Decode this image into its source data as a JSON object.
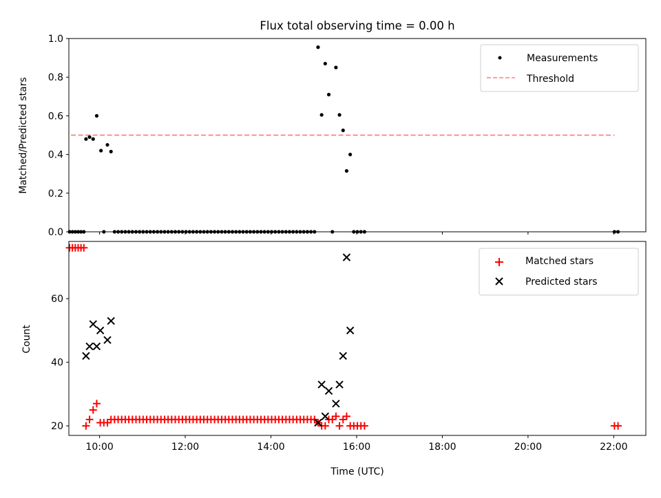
{
  "chart_data": [
    {
      "type": "scatter",
      "title": "Flux total observing time = 0.00 h",
      "xlabel": "",
      "ylabel": "Matched/Predicted stars",
      "xlim": [
        "09:17",
        "22:45"
      ],
      "ylim": [
        0,
        1.0
      ],
      "yticks": [
        "0.0",
        "0.2",
        "0.4",
        "0.6",
        "0.8",
        "1.0"
      ],
      "legend_position": "top-right",
      "series": [
        {
          "name": "Measurements",
          "color": "#000000",
          "marker": "dot",
          "points": [
            [
              "09:18",
              0
            ],
            [
              "09:22",
              0
            ],
            [
              "09:26",
              0
            ],
            [
              "09:30",
              0
            ],
            [
              "09:34",
              0
            ],
            [
              "09:38",
              0
            ],
            [
              "09:41",
              0.48
            ],
            [
              "09:46",
              0.49
            ],
            [
              "09:51",
              0.48
            ],
            [
              "09:56",
              0.6
            ],
            [
              "10:02",
              0.42
            ],
            [
              "10:06",
              0
            ],
            [
              "10:11",
              0.45
            ],
            [
              "10:16",
              0.415
            ],
            [
              "10:21",
              0
            ],
            [
              "10:26",
              0
            ],
            [
              "10:31",
              0
            ],
            [
              "10:36",
              0
            ],
            [
              "10:41",
              0
            ],
            [
              "10:46",
              0
            ],
            [
              "10:51",
              0
            ],
            [
              "10:56",
              0
            ],
            [
              "11:01",
              0
            ],
            [
              "11:06",
              0
            ],
            [
              "11:11",
              0
            ],
            [
              "11:16",
              0
            ],
            [
              "11:21",
              0
            ],
            [
              "11:26",
              0
            ],
            [
              "11:31",
              0
            ],
            [
              "11:36",
              0
            ],
            [
              "11:41",
              0
            ],
            [
              "11:46",
              0
            ],
            [
              "11:51",
              0
            ],
            [
              "11:56",
              0
            ],
            [
              "12:01",
              0
            ],
            [
              "12:06",
              0
            ],
            [
              "12:11",
              0
            ],
            [
              "12:16",
              0
            ],
            [
              "12:21",
              0
            ],
            [
              "12:26",
              0
            ],
            [
              "12:31",
              0
            ],
            [
              "12:36",
              0
            ],
            [
              "12:41",
              0
            ],
            [
              "12:46",
              0
            ],
            [
              "12:51",
              0
            ],
            [
              "12:56",
              0
            ],
            [
              "13:01",
              0
            ],
            [
              "13:06",
              0
            ],
            [
              "13:11",
              0
            ],
            [
              "13:16",
              0
            ],
            [
              "13:21",
              0
            ],
            [
              "13:26",
              0
            ],
            [
              "13:31",
              0
            ],
            [
              "13:36",
              0
            ],
            [
              "13:41",
              0
            ],
            [
              "13:46",
              0
            ],
            [
              "13:51",
              0
            ],
            [
              "13:56",
              0
            ],
            [
              "14:01",
              0
            ],
            [
              "14:06",
              0
            ],
            [
              "14:11",
              0
            ],
            [
              "14:16",
              0
            ],
            [
              "14:21",
              0
            ],
            [
              "14:26",
              0
            ],
            [
              "14:31",
              0
            ],
            [
              "14:36",
              0
            ],
            [
              "14:41",
              0
            ],
            [
              "14:46",
              0
            ],
            [
              "14:51",
              0
            ],
            [
              "14:56",
              0
            ],
            [
              "15:01",
              0
            ],
            [
              "15:06",
              0.955
            ],
            [
              "15:11",
              0.605
            ],
            [
              "15:16",
              0.87
            ],
            [
              "15:21",
              0.71
            ],
            [
              "15:26",
              0
            ],
            [
              "15:31",
              0.85
            ],
            [
              "15:36",
              0.605
            ],
            [
              "15:41",
              0.525
            ],
            [
              "15:46",
              0.315
            ],
            [
              "15:51",
              0.4
            ],
            [
              "15:56",
              0
            ],
            [
              "16:01",
              0
            ],
            [
              "16:06",
              0
            ],
            [
              "16:11",
              0
            ],
            [
              "22:01",
              0
            ],
            [
              "22:06",
              0
            ]
          ]
        },
        {
          "name": "Threshold",
          "color": "#ff7f7f",
          "style": "dashed",
          "points": [
            [
              "09:20",
              0.5
            ],
            [
              "22:01",
              0.5
            ]
          ]
        }
      ]
    },
    {
      "type": "scatter",
      "title": "",
      "xlabel": "Time (UTC)",
      "ylabel": "Count",
      "xlim": [
        "09:17",
        "22:45"
      ],
      "ylim": [
        17,
        78
      ],
      "yticks": [
        "20",
        "40",
        "60"
      ],
      "xticks": [
        "10:00",
        "12:00",
        "14:00",
        "16:00",
        "18:00",
        "20:00",
        "22:00"
      ],
      "legend_position": "top-right",
      "series": [
        {
          "name": "Matched stars",
          "color": "#ff0000",
          "marker": "plus",
          "points": [
            [
              "09:18",
              76
            ],
            [
              "09:22",
              76
            ],
            [
              "09:26",
              76
            ],
            [
              "09:30",
              76
            ],
            [
              "09:34",
              76
            ],
            [
              "09:38",
              76
            ],
            [
              "09:41",
              20
            ],
            [
              "09:46",
              22
            ],
            [
              "09:51",
              25
            ],
            [
              "09:56",
              27
            ],
            [
              "10:01",
              21
            ],
            [
              "10:06",
              21
            ],
            [
              "10:11",
              21
            ],
            [
              "10:16",
              22
            ],
            [
              "10:21",
              22
            ],
            [
              "10:26",
              22
            ],
            [
              "10:31",
              22
            ],
            [
              "10:36",
              22
            ],
            [
              "10:41",
              22
            ],
            [
              "10:46",
              22
            ],
            [
              "10:51",
              22
            ],
            [
              "10:56",
              22
            ],
            [
              "11:01",
              22
            ],
            [
              "11:06",
              22
            ],
            [
              "11:11",
              22
            ],
            [
              "11:16",
              22
            ],
            [
              "11:21",
              22
            ],
            [
              "11:26",
              22
            ],
            [
              "11:31",
              22
            ],
            [
              "11:36",
              22
            ],
            [
              "11:41",
              22
            ],
            [
              "11:46",
              22
            ],
            [
              "11:51",
              22
            ],
            [
              "11:56",
              22
            ],
            [
              "12:01",
              22
            ],
            [
              "12:06",
              22
            ],
            [
              "12:11",
              22
            ],
            [
              "12:16",
              22
            ],
            [
              "12:21",
              22
            ],
            [
              "12:26",
              22
            ],
            [
              "12:31",
              22
            ],
            [
              "12:36",
              22
            ],
            [
              "12:41",
              22
            ],
            [
              "12:46",
              22
            ],
            [
              "12:51",
              22
            ],
            [
              "12:56",
              22
            ],
            [
              "13:01",
              22
            ],
            [
              "13:06",
              22
            ],
            [
              "13:11",
              22
            ],
            [
              "13:16",
              22
            ],
            [
              "13:21",
              22
            ],
            [
              "13:26",
              22
            ],
            [
              "13:31",
              22
            ],
            [
              "13:36",
              22
            ],
            [
              "13:41",
              22
            ],
            [
              "13:46",
              22
            ],
            [
              "13:51",
              22
            ],
            [
              "13:56",
              22
            ],
            [
              "14:01",
              22
            ],
            [
              "14:06",
              22
            ],
            [
              "14:11",
              22
            ],
            [
              "14:16",
              22
            ],
            [
              "14:21",
              22
            ],
            [
              "14:26",
              22
            ],
            [
              "14:31",
              22
            ],
            [
              "14:36",
              22
            ],
            [
              "14:41",
              22
            ],
            [
              "14:46",
              22
            ],
            [
              "14:51",
              22
            ],
            [
              "14:56",
              22
            ],
            [
              "15:01",
              22
            ],
            [
              "15:06",
              21
            ],
            [
              "15:11",
              20
            ],
            [
              "15:16",
              20
            ],
            [
              "15:21",
              22
            ],
            [
              "15:26",
              22
            ],
            [
              "15:31",
              23
            ],
            [
              "15:36",
              20
            ],
            [
              "15:41",
              22
            ],
            [
              "15:46",
              23
            ],
            [
              "15:51",
              20
            ],
            [
              "15:56",
              20
            ],
            [
              "16:01",
              20
            ],
            [
              "16:06",
              20
            ],
            [
              "16:11",
              20
            ],
            [
              "22:01",
              20
            ],
            [
              "22:06",
              20
            ]
          ]
        },
        {
          "name": "Predicted stars",
          "color": "#000000",
          "marker": "x",
          "points": [
            [
              "09:41",
              42
            ],
            [
              "09:46",
              45
            ],
            [
              "09:51",
              52
            ],
            [
              "09:56",
              45
            ],
            [
              "10:01",
              50
            ],
            [
              "10:11",
              47
            ],
            [
              "10:16",
              53
            ],
            [
              "15:06",
              21
            ],
            [
              "15:11",
              33
            ],
            [
              "15:16",
              23
            ],
            [
              "15:21",
              31
            ],
            [
              "15:31",
              27
            ],
            [
              "15:36",
              33
            ],
            [
              "15:41",
              42
            ],
            [
              "15:46",
              73
            ],
            [
              "15:51",
              50
            ]
          ]
        }
      ]
    }
  ]
}
